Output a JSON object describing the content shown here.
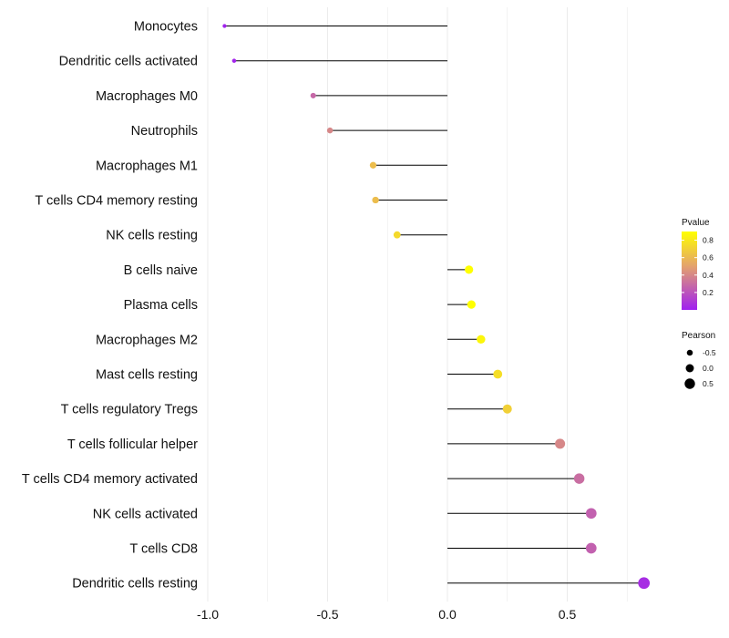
{
  "chart_data": {
    "type": "lollipop",
    "categories": [
      "Monocytes",
      "Dendritic cells activated",
      "Macrophages M0",
      "Neutrophils",
      "Macrophages M1",
      "T cells CD4 memory resting",
      "NK cells resting",
      "B cells naive",
      "Plasma cells",
      "Macrophages M2",
      "Mast cells resting",
      "T cells regulatory  Tregs ",
      "T cells follicular helper",
      "T cells CD4 memory activated",
      "NK cells activated",
      "T cells CD8",
      "Dendritic cells resting"
    ],
    "pearson": [
      -0.93,
      -0.89,
      -0.56,
      -0.49,
      -0.31,
      -0.3,
      -0.21,
      0.09,
      0.1,
      0.14,
      0.21,
      0.25,
      0.47,
      0.55,
      0.6,
      0.6,
      0.82
    ],
    "pvalue": [
      0.01,
      0.02,
      0.28,
      0.4,
      0.62,
      0.62,
      0.74,
      0.9,
      0.9,
      0.86,
      0.76,
      0.7,
      0.4,
      0.3,
      0.25,
      0.25,
      0.05
    ],
    "x_ticks": [
      -1.0,
      -0.5,
      0.0,
      0.5
    ],
    "x_tick_labels": [
      "-1.0",
      "-0.5",
      "0.0",
      "0.5"
    ],
    "xlim": [
      -1.0,
      0.85
    ],
    "xlabel": "",
    "ylabel": "",
    "grid": true,
    "legend_color": {
      "title": "Pvalue",
      "ticks": [
        0.8,
        0.6,
        0.4,
        0.2
      ],
      "tick_labels": [
        "0.8",
        "0.6",
        "0.4",
        "0.2"
      ],
      "range": [
        0.0,
        0.9
      ],
      "color_low": "#a020f0",
      "color_mid": "#e3a06f",
      "color_high": "#ffff00"
    },
    "legend_size": {
      "title": "Pearson",
      "values": [
        -0.5,
        0.0,
        0.5
      ],
      "labels": [
        "-0.5",
        "0.0",
        "0.5"
      ]
    },
    "legend_position": "right",
    "stem_color": "#000000"
  }
}
